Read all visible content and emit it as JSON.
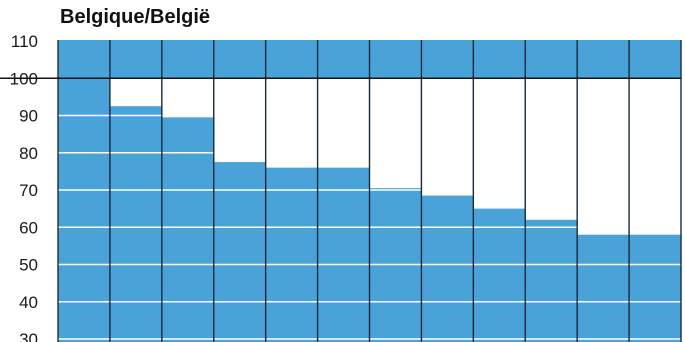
{
  "chart_data": {
    "type": "bar",
    "title": "Belgique/België",
    "xlabel": "",
    "ylabel": "",
    "ylim": [
      30,
      110
    ],
    "yticks": [
      110,
      100,
      90,
      80,
      70,
      60,
      50,
      40,
      30
    ],
    "categories": [
      "",
      "",
      "",
      "",
      "",
      "",
      "",
      "",
      "",
      "",
      "",
      ""
    ],
    "values": [
      100,
      92.5,
      89.5,
      77.5,
      76,
      76,
      70.5,
      68.5,
      65,
      62,
      58,
      58
    ],
    "reference_line": 100,
    "grid": true,
    "colors": {
      "bar": "#4aa3d8",
      "plot_top_fill": "#4aa3d8",
      "gridline": "#ffffff",
      "reference_line": "#111111",
      "divider": "#1b2a3a",
      "background": "#ffffff"
    }
  }
}
